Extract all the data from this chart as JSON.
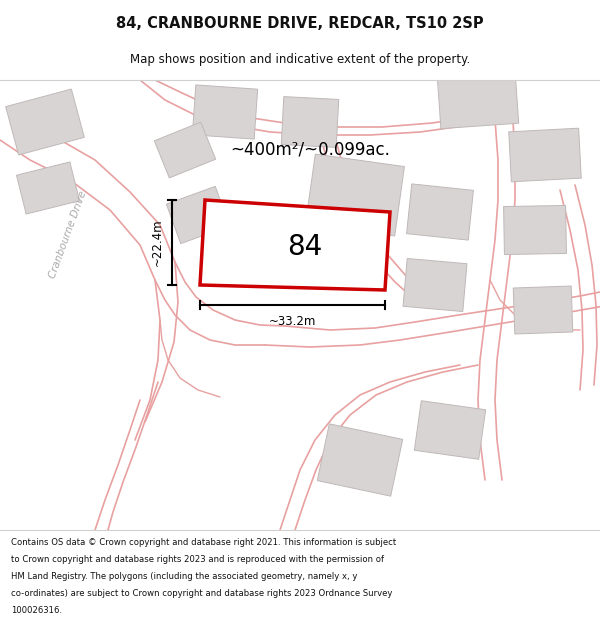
{
  "title_line1": "84, CRANBOURNE DRIVE, REDCAR, TS10 2SP",
  "title_line2": "Map shows position and indicative extent of the property.",
  "area_text": "~400m²/~0.099ac.",
  "label_84": "84",
  "dim_width": "~33.2m",
  "dim_height": "~22.4m",
  "street_label": "Cranbourne Drive",
  "footer_text": "Contains OS data © Crown copyright and database right 2021. This information is subject to Crown copyright and database rights 2023 and is reproduced with the permission of HM Land Registry. The polygons (including the associated geometry, namely x, y co-ordinates) are subject to Crown copyright and database rights 2023 Ordnance Survey 100026316.",
  "map_bg": "#f7f3f3",
  "building_fill": "#d9d4d4",
  "building_edge": "#c0b8b8",
  "road_color": "#e8a0a0",
  "prop_fill": "#ffffff",
  "prop_edge": "#cc0000",
  "title_bg": "#ffffff",
  "footer_bg": "#ffffff",
  "text_color": "#111111",
  "street_color": "#aaaaaa",
  "dim_color": "#111111"
}
